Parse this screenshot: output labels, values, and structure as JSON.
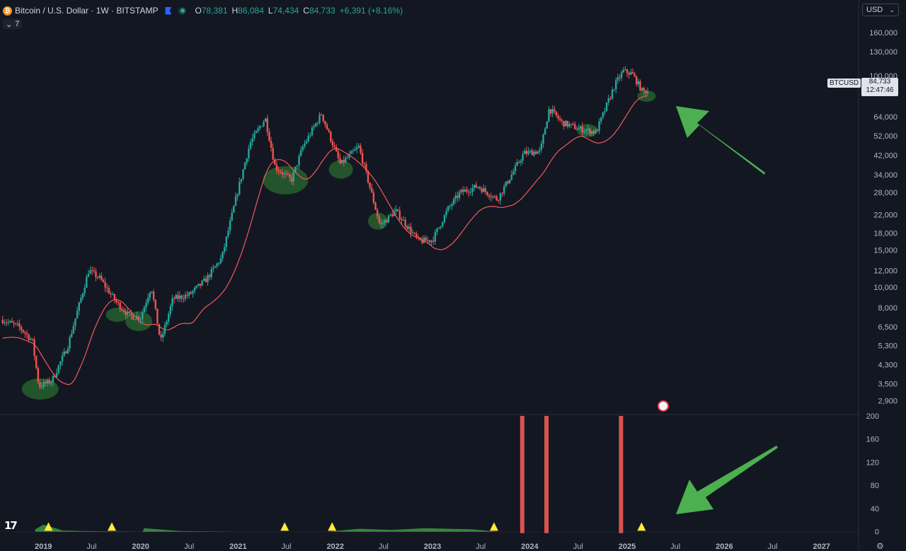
{
  "header": {
    "coin_glyph": "₿",
    "title": "Bitcoin / U.S. Dollar · 1W · BITSTAMP",
    "ohlc": [
      {
        "key": "O",
        "value": "78,381"
      },
      {
        "key": "H",
        "value": "86,084"
      },
      {
        "key": "L",
        "value": "74,434"
      },
      {
        "key": "C",
        "value": "84,733"
      }
    ],
    "change": "+6,391 (+8.16%)",
    "indicator_count": "7",
    "currency": "USD"
  },
  "price_tag": {
    "symbol": "BTCUSD",
    "price": "84,733",
    "countdown": "12:47:46"
  },
  "colors": {
    "up": "#26a69a",
    "down": "#ef5350",
    "ma": "#f05a5a",
    "highlight": "#2e7d32",
    "arrow": "#4caf50",
    "bg": "#131722",
    "volume_bar": "#d9534f",
    "signal": "#ffeb3b"
  },
  "chart_data": [
    {
      "type": "line",
      "title": "Bitcoin / U.S. Dollar · 1W · BITSTAMP",
      "y_scale": "log",
      "ylim": [
        2700,
        170000
      ],
      "y_ticks": [
        "160,000",
        "130,000",
        "100,000",
        "64,000",
        "52,000",
        "42,000",
        "34,000",
        "28,000",
        "22,000",
        "18,000",
        "15,000",
        "12,000",
        "10,000",
        "8,000",
        "6,500",
        "5,300",
        "4,300",
        "3,500",
        "2,900"
      ],
      "y_tick_values": [
        160000,
        130000,
        100000,
        64000,
        52000,
        42000,
        34000,
        28000,
        22000,
        18000,
        15000,
        12000,
        10000,
        8000,
        6500,
        5300,
        4300,
        3500,
        2900
      ],
      "x_ticks": [
        "2019",
        "Jul",
        "2020",
        "Jul",
        "2021",
        "Jul",
        "2022",
        "Jul",
        "2023",
        "Jul",
        "2024",
        "Jul",
        "2025",
        "Jul",
        "2026",
        "Jul",
        "2027"
      ],
      "x_tick_values": [
        "2019-01-01",
        "2019-07-01",
        "2020-01-01",
        "2020-07-01",
        "2021-01-01",
        "2021-07-01",
        "2022-01-01",
        "2022-07-01",
        "2023-01-01",
        "2023-07-01",
        "2024-01-01",
        "2024-07-01",
        "2025-01-01",
        "2025-07-01",
        "2026-01-01",
        "2026-07-01",
        "2027-01-01"
      ],
      "xlim": [
        "2018-07-22",
        "2027-05-20"
      ],
      "series": [
        {
          "x": [
            "2018-08-01",
            "2018-10-01",
            "2018-11-20",
            "2018-12-15",
            "2019-02-01",
            "2019-04-01",
            "2019-06-20",
            "2019-08-01",
            "2019-10-01",
            "2019-11-20",
            "2020-01-01",
            "2020-02-10",
            "2020-03-16",
            "2020-05-01",
            "2020-07-01",
            "2020-09-01",
            "2020-11-01",
            "2021-01-01",
            "2021-02-15",
            "2021-04-13",
            "2021-05-20",
            "2021-07-20",
            "2021-09-01",
            "2021-11-10",
            "2022-01-20",
            "2022-03-30",
            "2022-05-10",
            "2022-06-18",
            "2022-08-15",
            "2022-11-10",
            "2023-01-01",
            "2023-03-01",
            "2023-04-15",
            "2023-06-20",
            "2023-09-01",
            "2023-10-25",
            "2023-12-10",
            "2024-02-10",
            "2024-03-14",
            "2024-05-01",
            "2024-07-05",
            "2024-09-06",
            "2024-11-15",
            "2024-12-17",
            "2025-01-20",
            "2025-02-28",
            "2025-03-25"
          ],
          "values": [
            7000,
            6500,
            5600,
            3400,
            3600,
            5200,
            12000,
            11000,
            8500,
            7300,
            7200,
            10100,
            5500,
            8800,
            9200,
            10800,
            13800,
            29000,
            48000,
            63000,
            37000,
            32000,
            46000,
            66000,
            38000,
            46000,
            30000,
            19500,
            23000,
            16500,
            16700,
            23500,
            28000,
            30000,
            26000,
            34000,
            43000,
            44000,
            70000,
            60000,
            56000,
            54000,
            90000,
            105000,
            102000,
            84000,
            84733
          ]
        }
      ]
    },
    {
      "type": "bar",
      "ylim": [
        -15,
        200
      ],
      "y_ticks": [
        "200",
        "160",
        "120",
        "80",
        "40",
        "0"
      ],
      "y_tick_values": [
        200,
        160,
        120,
        80,
        40,
        0
      ],
      "x_ticks": [
        "2019",
        "Jul",
        "2020",
        "Jul",
        "2021",
        "Jul",
        "2022",
        "Jul",
        "2023",
        "Jul",
        "2024",
        "Jul",
        "2025",
        "Jul",
        "2026",
        "Jul",
        "2027"
      ],
      "x_tick_values": [
        "2019-01-01",
        "2019-07-01",
        "2020-01-01",
        "2020-07-01",
        "2021-01-01",
        "2021-07-01",
        "2022-01-01",
        "2022-07-01",
        "2023-01-01",
        "2023-07-01",
        "2024-01-01",
        "2024-07-01",
        "2025-01-01",
        "2025-07-01",
        "2026-01-01",
        "2026-07-01",
        "2027-01-01"
      ],
      "xlim": [
        "2018-07-22",
        "2027-05-20"
      ],
      "bars": {
        "x": [
          "2023-12-04",
          "2024-03-04",
          "2024-12-09"
        ],
        "values": [
          200,
          200,
          200
        ]
      },
      "area": {
        "x": [
          "2018-12-01",
          "2019-01-01",
          "2019-02-01",
          "2019-03-15",
          "2019-06-01",
          "2020-01-08",
          "2020-01-15",
          "2020-06-01",
          "2021-01-01",
          "2021-06-01",
          "2021-12-01",
          "2022-04-01",
          "2022-08-01",
          "2022-12-01",
          "2023-06-01",
          "2023-09-01"
        ],
        "values": [
          4,
          12,
          8,
          2,
          1,
          0,
          6,
          1,
          0,
          0,
          0,
          5,
          3,
          6,
          4,
          0
        ]
      },
      "signals": {
        "x": [
          "2019-01-20",
          "2019-09-15",
          "2021-06-25",
          "2021-12-20",
          "2023-08-20",
          "2025-02-24"
        ],
        "values": [
          9,
          9,
          9,
          9,
          9,
          9
        ]
      }
    }
  ]
}
